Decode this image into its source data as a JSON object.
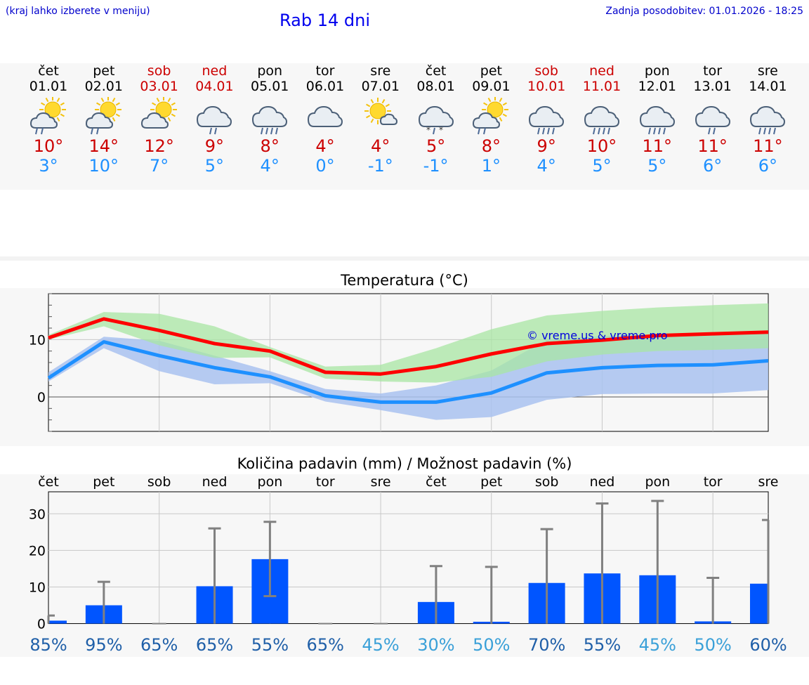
{
  "header": {
    "hint": "(kraj lahko izberete v meniju)",
    "title": "Rab 14 dni",
    "updated": "Zadnja posodobitev: 01.01.2026 - 18:25"
  },
  "days": [
    {
      "name": "čet",
      "date": "01.01",
      "weekend": false,
      "icon": "sun-cloud-rain-icon",
      "tmax": "10°",
      "tmin": "3°"
    },
    {
      "name": "pet",
      "date": "02.01",
      "weekend": false,
      "icon": "sun-cloud-rain-icon",
      "tmax": "14°",
      "tmin": "10°"
    },
    {
      "name": "sob",
      "date": "03.01",
      "weekend": true,
      "icon": "sun-cloud-icon",
      "tmax": "12°",
      "tmin": "7°"
    },
    {
      "name": "ned",
      "date": "04.01",
      "weekend": true,
      "icon": "cloud-light-rain-icon",
      "tmax": "9°",
      "tmin": "5°"
    },
    {
      "name": "pon",
      "date": "05.01",
      "weekend": false,
      "icon": "cloud-rain-icon",
      "tmax": "8°",
      "tmin": "4°"
    },
    {
      "name": "tor",
      "date": "06.01",
      "weekend": false,
      "icon": "cloud-icon",
      "tmax": "4°",
      "tmin": "0°"
    },
    {
      "name": "sre",
      "date": "07.01",
      "weekend": false,
      "icon": "sun-small-cloud-icon",
      "tmax": "4°",
      "tmin": "-1°"
    },
    {
      "name": "čet",
      "date": "08.01",
      "weekend": false,
      "icon": "cloud-sleet-icon",
      "tmax": "5°",
      "tmin": "-1°"
    },
    {
      "name": "pet",
      "date": "09.01",
      "weekend": false,
      "icon": "sun-cloud-rain-icon",
      "tmax": "8°",
      "tmin": "1°"
    },
    {
      "name": "sob",
      "date": "10.01",
      "weekend": true,
      "icon": "cloud-rain-icon",
      "tmax": "9°",
      "tmin": "4°"
    },
    {
      "name": "ned",
      "date": "11.01",
      "weekend": true,
      "icon": "cloud-rain-icon",
      "tmax": "10°",
      "tmin": "5°"
    },
    {
      "name": "pon",
      "date": "12.01",
      "weekend": false,
      "icon": "cloud-rain-icon",
      "tmax": "11°",
      "tmin": "5°"
    },
    {
      "name": "tor",
      "date": "13.01",
      "weekend": false,
      "icon": "cloud-light-rain-icon",
      "tmax": "11°",
      "tmin": "6°"
    },
    {
      "name": "sre",
      "date": "14.01",
      "weekend": false,
      "icon": "cloud-rain-icon",
      "tmax": "11°",
      "tmin": "6°"
    }
  ],
  "colors": {
    "max_line": "#ff0000",
    "min_line": "#1e90ff",
    "max_band": "#a8e6a3",
    "min_band": "#a9c2f0",
    "overlap_band": "#7fc4a6",
    "bar": "#0055ff",
    "error": "#808080",
    "weekend_text": "#cc0000",
    "tmin_text": "#1e90ff"
  },
  "chart_data": [
    {
      "type": "line",
      "title": "Temperatura (°C)",
      "watermark": "© vreme.us & vreme.pro",
      "ylim": [
        -6,
        18
      ],
      "yticks": [
        0,
        10
      ],
      "x": [
        1,
        2,
        3,
        4,
        5,
        6,
        7,
        8,
        9,
        10,
        11,
        12,
        13,
        14
      ],
      "series": [
        {
          "name": "max",
          "values": [
            10.3,
            13.6,
            11.6,
            9.3,
            8.0,
            4.3,
            4.0,
            5.3,
            7.5,
            9.3,
            9.9,
            10.7,
            11.0,
            11.3
          ]
        },
        {
          "name": "min",
          "values": [
            3.3,
            9.6,
            7.2,
            5.1,
            3.5,
            0.2,
            -0.9,
            -0.9,
            0.7,
            4.2,
            5.1,
            5.5,
            5.6,
            6.3
          ]
        },
        {
          "name": "max_range_low",
          "values": [
            10.0,
            12.3,
            9.0,
            6.8,
            6.9,
            3.2,
            2.7,
            2.5,
            3.5,
            6.2,
            7.4,
            8.0,
            8.2,
            8.5
          ]
        },
        {
          "name": "max_range_high",
          "values": [
            10.8,
            14.8,
            14.5,
            12.3,
            8.7,
            5.3,
            5.6,
            8.5,
            11.8,
            14.2,
            15.0,
            15.6,
            16.0,
            16.3
          ]
        },
        {
          "name": "min_range_low",
          "values": [
            2.7,
            8.5,
            4.5,
            2.2,
            2.4,
            -0.8,
            -2.3,
            -4.0,
            -3.5,
            -0.5,
            0.5,
            0.6,
            0.6,
            1.2
          ]
        },
        {
          "name": "min_range_high",
          "values": [
            4.3,
            10.5,
            9.8,
            7.2,
            4.5,
            1.4,
            0.6,
            2.0,
            4.6,
            10.0,
            10.6,
            10.9,
            11.0,
            11.0
          ]
        }
      ]
    },
    {
      "type": "bar",
      "title": "Količina padavin (mm) / Možnost padavin (%)",
      "ylim": [
        -2,
        36
      ],
      "yticks": [
        0,
        10,
        20,
        30
      ],
      "categories": [
        "čet",
        "pet",
        "sob",
        "ned",
        "pon",
        "tor",
        "sre",
        "čet",
        "pet",
        "sob",
        "ned",
        "pon",
        "tor",
        "sre"
      ],
      "values": [
        0.8,
        5.0,
        0,
        10.2,
        17.6,
        0,
        0,
        5.9,
        0.5,
        11.1,
        13.7,
        13.2,
        0.6,
        10.9
      ],
      "error_low": [
        0,
        0,
        0,
        0,
        7.5,
        0,
        0,
        0,
        0,
        0,
        0,
        0,
        0,
        0
      ],
      "error_high": [
        2.2,
        11.4,
        0,
        26.0,
        27.8,
        0,
        0,
        15.7,
        15.5,
        25.8,
        32.8,
        33.5,
        12.5,
        28.3
      ],
      "probabilities": [
        "85%",
        "95%",
        "65%",
        "65%",
        "55%",
        "65%",
        "45%",
        "30%",
        "50%",
        "70%",
        "55%",
        "45%",
        "50%",
        "60%"
      ]
    }
  ]
}
